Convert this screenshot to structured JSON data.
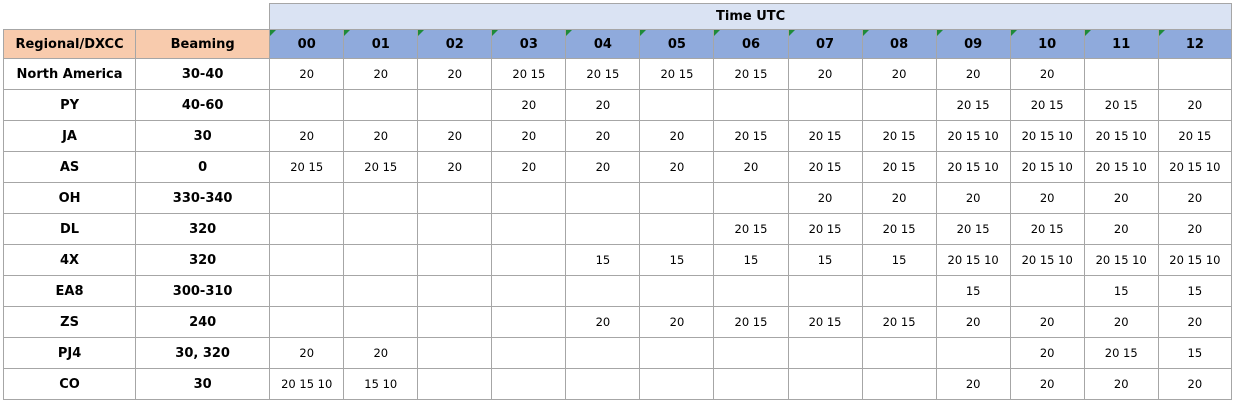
{
  "table": {
    "time_title": "Time UTC",
    "col_region": "Regional/DXCC",
    "col_beaming": "Beaming",
    "hours": [
      "00",
      "01",
      "02",
      "03",
      "04",
      "05",
      "06",
      "07",
      "08",
      "09",
      "10",
      "11",
      "12"
    ],
    "rows": [
      {
        "region": "North America",
        "beaming": "30-40",
        "cells": [
          "20",
          "20",
          "20",
          "20 15",
          "20 15",
          "20 15",
          "20 15",
          "20",
          "20",
          "20",
          "20",
          "",
          ""
        ]
      },
      {
        "region": "PY",
        "beaming": "40-60",
        "cells": [
          "",
          "",
          "",
          "20",
          "20",
          "",
          "",
          "",
          "",
          "20 15",
          "20 15",
          "20 15",
          "20"
        ]
      },
      {
        "region": "JA",
        "beaming": "30",
        "cells": [
          "20",
          "20",
          "20",
          "20",
          "20",
          "20",
          "20 15",
          "20 15",
          "20 15",
          "20 15 10",
          "20 15 10",
          "20 15 10",
          "20 15"
        ]
      },
      {
        "region": "AS",
        "beaming": "0",
        "cells": [
          "20 15",
          "20 15",
          "20",
          "20",
          "20",
          "20",
          "20",
          "20 15",
          "20 15",
          "20 15 10",
          "20 15 10",
          "20 15 10",
          "20 15 10"
        ]
      },
      {
        "region": "OH",
        "beaming": "330-340",
        "cells": [
          "",
          "",
          "",
          "",
          "",
          "",
          "",
          "20",
          "20",
          "20",
          "20",
          "20",
          "20"
        ]
      },
      {
        "region": "DL",
        "beaming": "320",
        "cells": [
          "",
          "",
          "",
          "",
          "",
          "",
          "20 15",
          "20 15",
          "20 15",
          "20 15",
          "20 15",
          "20",
          "20"
        ]
      },
      {
        "region": "4X",
        "beaming": "320",
        "cells": [
          "",
          "",
          "",
          "",
          "15",
          "15",
          "15",
          "15",
          "15",
          "20 15 10",
          "20 15 10",
          "20 15 10",
          "20 15 10"
        ]
      },
      {
        "region": "EA8",
        "beaming": "300-310",
        "cells": [
          "",
          "",
          "",
          "",
          "",
          "",
          "",
          "",
          "",
          "15",
          "",
          "15",
          "15"
        ]
      },
      {
        "region": "ZS",
        "beaming": "240",
        "cells": [
          "",
          "",
          "",
          "",
          "20",
          "20",
          "20 15",
          "20 15",
          "20 15",
          "20",
          "20",
          "20",
          "20"
        ]
      },
      {
        "region": "PJ4",
        "beaming": "30, 320",
        "cells": [
          "20",
          "20",
          "",
          "",
          "",
          "",
          "",
          "",
          "",
          "",
          "20",
          "20 15",
          "15"
        ]
      },
      {
        "region": "CO",
        "beaming": "30",
        "cells": [
          "20 15 10",
          "15 10",
          "",
          "",
          "",
          "",
          "",
          "",
          "",
          "20",
          "20",
          "20",
          "20"
        ]
      }
    ]
  }
}
